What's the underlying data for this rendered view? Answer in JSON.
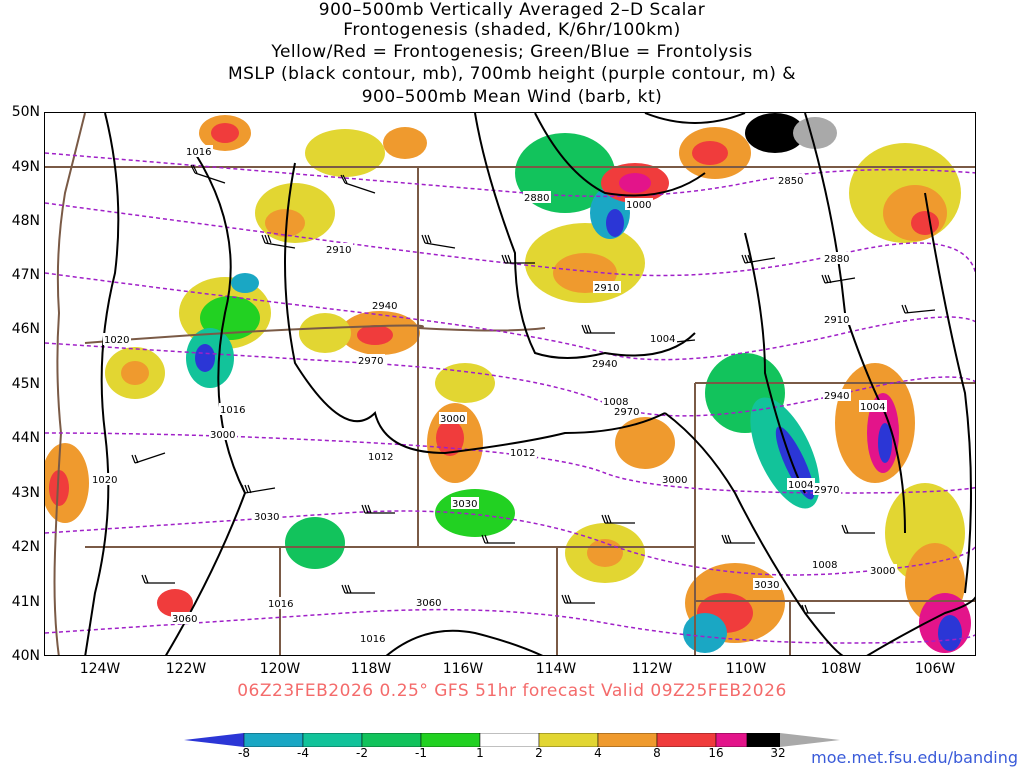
{
  "title_lines": [
    "900–500mb Vertically Averaged 2–D Scalar",
    "Frontogenesis (shaded, K/6hr/100km)",
    "Yellow/Red = Frontogenesis;  Green/Blue = Frontolysis",
    "MSLP (black contour, mb), 700mb height (purple contour, m) &",
    "900–500mb Mean Wind (barb, kt)"
  ],
  "lat_labels": [
    "50N",
    "49N",
    "48N",
    "47N",
    "46N",
    "45N",
    "44N",
    "43N",
    "42N",
    "41N",
    "40N"
  ],
  "lon_labels": [
    "124W",
    "122W",
    "120W",
    "118W",
    "116W",
    "114W",
    "112W",
    "110W",
    "108W",
    "106W"
  ],
  "valid_text": "06Z23FEB2026 0.25° GFS 51hr forecast Valid 09Z25FEB2026",
  "credit": "moe.met.fsu.edu/banding",
  "colorbar": {
    "labels": [
      "-8",
      "-4",
      "-2",
      "-1",
      "1",
      "2",
      "4",
      "8",
      "16",
      "32"
    ],
    "colors": [
      "#2b36d6",
      "#1aa7c4",
      "#12c39a",
      "#12c35c",
      "#22d122",
      "#ffffff",
      "#e2d632",
      "#ef9a2e",
      "#f03c3c",
      "#e3148a",
      "#000000",
      "#a9a9a9"
    ]
  },
  "legend": {
    "frontogenesis": "Yellow/Red",
    "frontolysis": "Green/Blue"
  },
  "contours": {
    "mslp_labels": [
      "1016",
      "1020",
      "1016",
      "1020",
      "1012",
      "1012",
      "1000",
      "1004",
      "1008",
      "1004",
      "1004",
      "1008",
      "1016",
      "1016"
    ],
    "height_labels": [
      "2880",
      "2850",
      "2910",
      "2880",
      "2940",
      "2910",
      "2970",
      "2940",
      "2910",
      "3000",
      "2970",
      "2940",
      "3000",
      "3000",
      "3030",
      "2970",
      "3030",
      "3060",
      "3060",
      "3030",
      "3000"
    ]
  },
  "colors": {
    "mslp": "#000000",
    "height": "#a020c8",
    "borders": "#7a5a46"
  }
}
